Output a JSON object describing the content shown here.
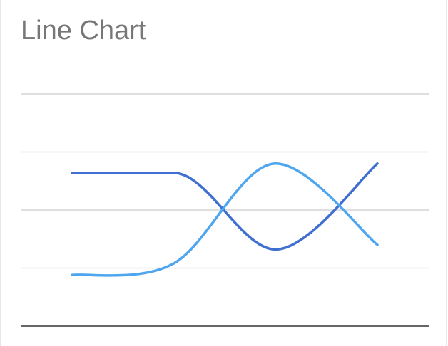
{
  "chart_data": {
    "type": "line",
    "title": "Line Chart",
    "x": [
      0,
      1,
      2,
      3
    ],
    "ylim": [
      0,
      100
    ],
    "grid": true,
    "series": [
      {
        "values": [
          66,
          66,
          33,
          70
        ],
        "color": "#3f6fd1"
      },
      {
        "values": [
          22,
          27,
          70,
          35
        ],
        "color": "#4ea6ef"
      }
    ]
  }
}
